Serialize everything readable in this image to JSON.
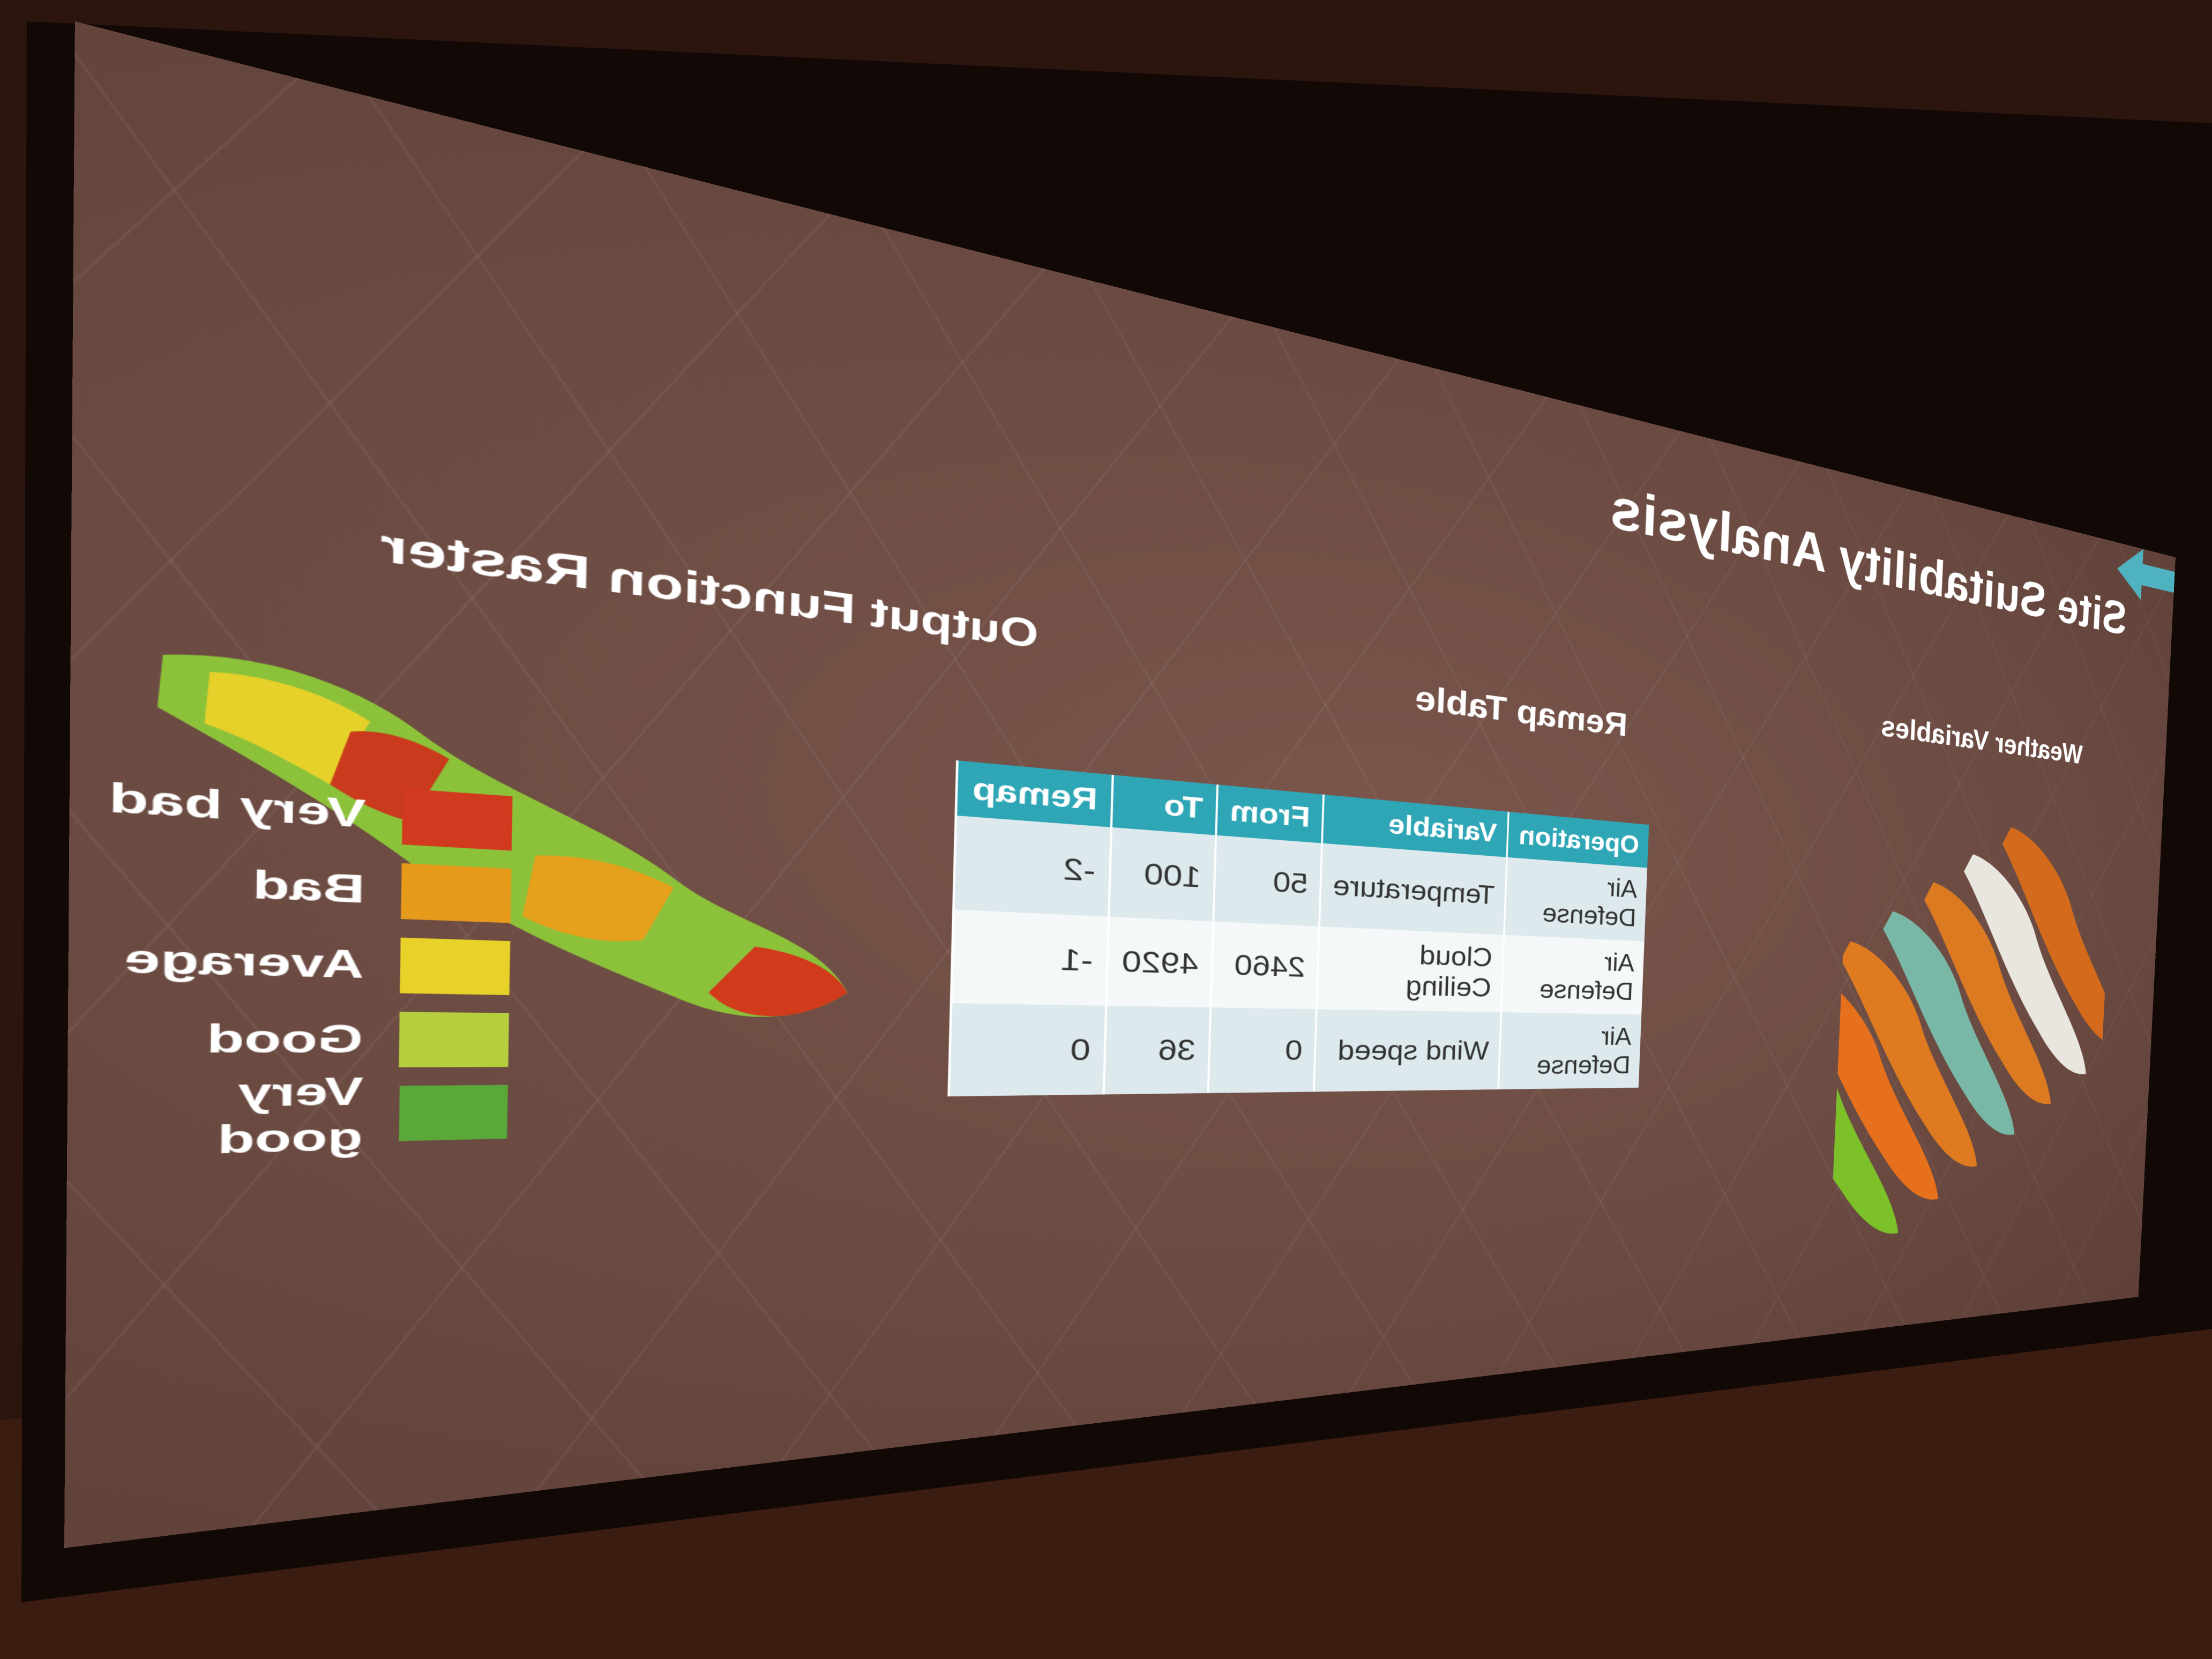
{
  "slide": {
    "title": "Site Suitability Analysis",
    "captions": {
      "weather": "Weather Variables",
      "remap": "Remap Table",
      "output": "Output Function Raster"
    }
  },
  "remap_table": {
    "headers": [
      "Operation",
      "Variable",
      "From",
      "To",
      "Remap"
    ],
    "rows": [
      [
        "Air Defense",
        "Temperature",
        "50",
        "100",
        "-2"
      ],
      [
        "Air Defense",
        "Cloud Ceiling",
        "2460",
        "4920",
        "-1"
      ],
      [
        "Air Defense",
        "Wind speed",
        "0",
        "36",
        "0"
      ]
    ],
    "header_color": "#2fa6b6"
  },
  "legend": [
    {
      "label": "Very bad",
      "color": "#d13a1e"
    },
    {
      "label": "Bad",
      "color": "#e59a1a"
    },
    {
      "label": "Average",
      "color": "#e8d22a"
    },
    {
      "label": "Good",
      "color": "#b6cf3e"
    },
    {
      "label": "Very good",
      "color": "#5aa83a"
    }
  ],
  "arrow_color": "#4fb3bf"
}
